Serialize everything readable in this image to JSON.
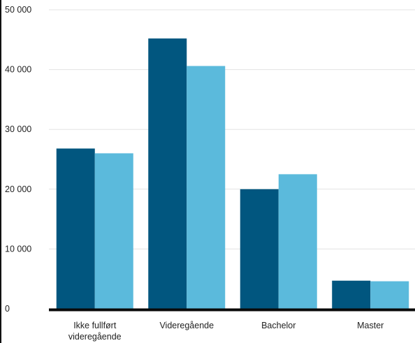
{
  "chart_data": {
    "type": "bar",
    "title": "",
    "xlabel": "",
    "ylabel": "",
    "categories": [
      "Ikke fullført videregående",
      "Videregående",
      "Bachelor",
      "Master"
    ],
    "category_lines": [
      [
        "Ikke fullført",
        "videregående"
      ],
      [
        "Videregående"
      ],
      [
        "Bachelor"
      ],
      [
        "Master"
      ]
    ],
    "series": [
      {
        "color": "#01567f",
        "values": [
          26800,
          45200,
          20000,
          4700
        ]
      },
      {
        "color": "#5bbadc",
        "values": [
          26000,
          40600,
          22500,
          4600
        ]
      }
    ],
    "ylim": [
      0,
      50000
    ],
    "yticks": [
      0,
      10000,
      20000,
      30000,
      40000,
      50000
    ],
    "ytick_labels": [
      "0",
      "10 000",
      "20 000",
      "30 000",
      "40 000",
      "50 000"
    ],
    "grid": true,
    "legend": "none"
  }
}
